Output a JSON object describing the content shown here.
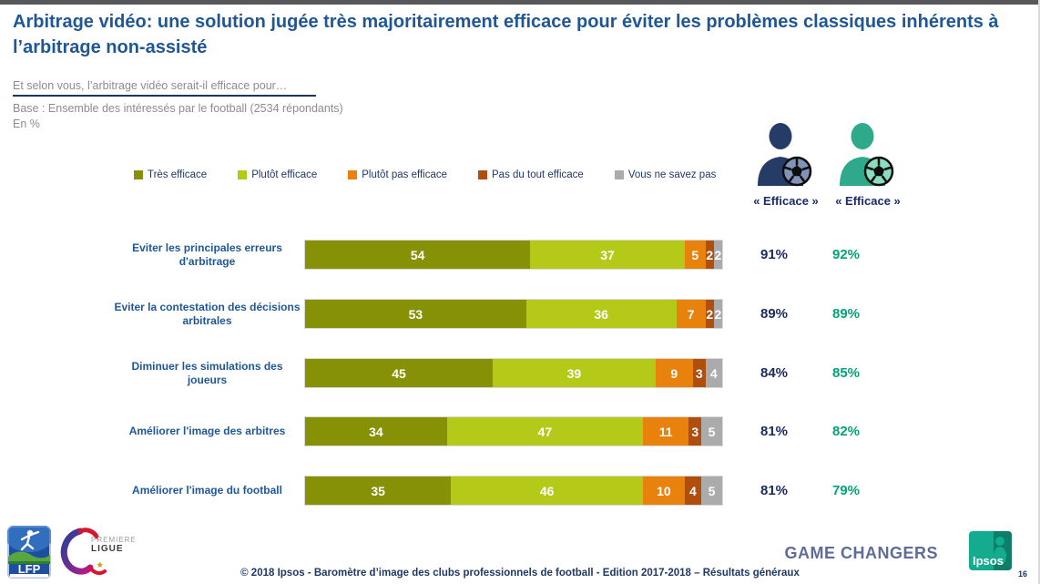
{
  "slide": {
    "title": "Arbitrage vidéo: une solution jugée très majoritairement efficace pour éviter les problèmes classiques inhérents à l’arbitrage non-assisté",
    "question": "Et selon vous, l’arbitrage vidéo serait-il efficace pour…",
    "base": "Base : Ensemble des intéressés par le football (2534 répondants)",
    "unit": "En %"
  },
  "legend": [
    {
      "label": "Très efficace",
      "color": "#869106"
    },
    {
      "label": "Plutôt efficace",
      "color": "#B5C918"
    },
    {
      "label": "Plutôt pas efficace",
      "color": "#E8820C"
    },
    {
      "label": "Pas du tout efficace",
      "color": "#B04F0D"
    },
    {
      "label": "Vous ne savez pas",
      "color": "#ABABAB"
    }
  ],
  "personas": [
    {
      "label": "« Efficace »",
      "color": "#253C66",
      "ball_accent": "#8093B8"
    },
    {
      "label": "« Efficace »",
      "color": "#2EAA8A",
      "ball_accent": "#8ADEC0"
    }
  ],
  "chart_data": {
    "type": "bar",
    "orientation": "horizontal-stacked",
    "xlim": [
      0,
      100
    ],
    "categories": [
      "Eviter les principales erreurs d'arbitrage",
      "Eviter la contestation des décisions arbitrales",
      "Diminuer les simulations des joueurs",
      "Améliorer l'image des arbitres",
      "Améliorer l'image du football"
    ],
    "series": [
      {
        "name": "Très efficace",
        "color": "#869106",
        "values": [
          54,
          53,
          45,
          34,
          35
        ]
      },
      {
        "name": "Plutôt efficace",
        "color": "#B5C918",
        "values": [
          37,
          36,
          39,
          47,
          46
        ]
      },
      {
        "name": "Plutôt pas efficace",
        "color": "#E8820C",
        "values": [
          5,
          7,
          9,
          11,
          10
        ]
      },
      {
        "name": "Pas du tout efficace",
        "color": "#B04F0D",
        "values": [
          2,
          2,
          3,
          3,
          4
        ]
      },
      {
        "name": "Vous ne savez pas",
        "color": "#ABABAB",
        "values": [
          2,
          2,
          4,
          5,
          5
        ]
      }
    ],
    "totals": [
      {
        "group1": "91%",
        "group2": "92%"
      },
      {
        "group1": "89%",
        "group2": "89%"
      },
      {
        "group1": "84%",
        "group2": "85%"
      },
      {
        "group1": "81%",
        "group2": "82%"
      },
      {
        "group1": "81%",
        "group2": "79%"
      }
    ]
  },
  "footer": {
    "copyright": "© 2018 Ipsos - Baromètre d’image des clubs professionnels de football - Edition 2017-2018 – Résultats généraux",
    "tagline": "GAME CHANGERS",
    "page": "16",
    "lfp_label": "LFP",
    "premiere_ligue_line1": "PREMIERE",
    "premiere_ligue_line2": "LIGUE",
    "ipsos_label": "Ipsos"
  }
}
